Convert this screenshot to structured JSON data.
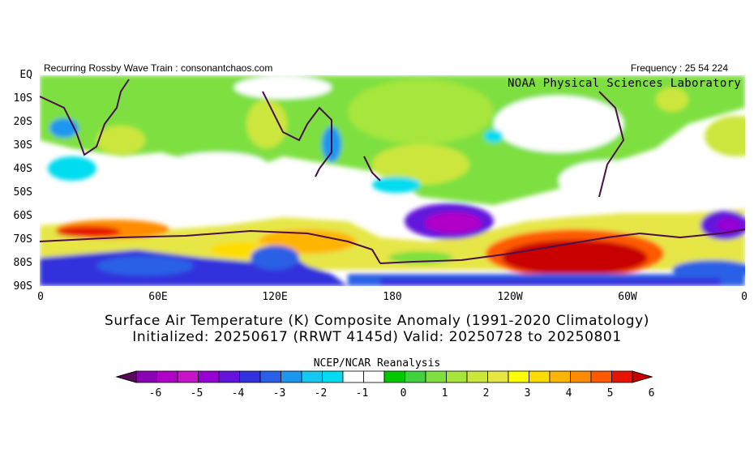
{
  "header": {
    "left": "Recurring Rossby Wave Train : consonantchaos.com",
    "right": "Frequency : 25 54 224",
    "lab": "NOAA Physical Sciences Laboratory"
  },
  "title": {
    "line1": "Surface Air Temperature (K) Composite Anomaly (1991-2020 Climatology)",
    "line2": "Initialized: 20250617 (RRWT 4145d) Valid: 20250728 to 20250801"
  },
  "source": "NCEP/NCAR Reanalysis",
  "map": {
    "lat_labels": [
      "EQ",
      "10S",
      "20S",
      "30S",
      "40S",
      "50S",
      "60S",
      "70S",
      "80S",
      "90S"
    ],
    "lon_labels": [
      "0",
      "60E",
      "120E",
      "180",
      "120W",
      "60W",
      "0"
    ],
    "coast_color": "#4b0f4b"
  },
  "colorbar": {
    "tick_labels": [
      "-6",
      "-5",
      "-4",
      "-3",
      "-2",
      "-1",
      "0",
      "1",
      "2",
      "3",
      "4",
      "5",
      "6"
    ],
    "colors": [
      "#5a0a5a",
      "#8c00b4",
      "#b000c8",
      "#c814c8",
      "#9600d2",
      "#6414dc",
      "#3232dc",
      "#2a60e6",
      "#1e96f0",
      "#14c8f0",
      "#00dcf0",
      "#ffffff",
      "#ffffff",
      "#00c800",
      "#40d040",
      "#7ee040",
      "#a6e63c",
      "#cce63c",
      "#e6e646",
      "#ffff00",
      "#ffdc00",
      "#ffb400",
      "#ff8c00",
      "#ff5a00",
      "#e61400",
      "#c80000"
    ]
  }
}
